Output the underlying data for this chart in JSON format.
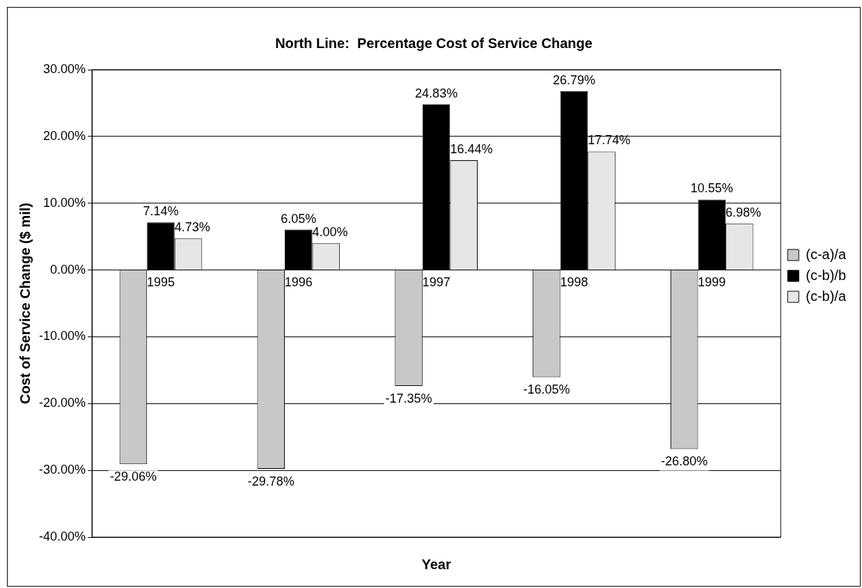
{
  "chart_data": {
    "type": "bar",
    "title": "North Line:  Percentage Cost of Service Change",
    "xlabel": "Year",
    "ylabel": "Cost of Service Change ($ mil)",
    "categories": [
      "1995",
      "1996",
      "1997",
      "1998",
      "1999"
    ],
    "series": [
      {
        "name": "(c-a)/a",
        "color": "#c8c8c8",
        "values": [
          -29.06,
          -29.78,
          -17.35,
          -16.05,
          -26.8
        ],
        "value_labels": [
          "-29.06%",
          "-29.78%",
          "-17.35%",
          "-16.05%",
          "-26.80%"
        ]
      },
      {
        "name": "(c-b)/b",
        "color": "#000000",
        "values": [
          7.14,
          6.05,
          24.83,
          26.79,
          10.55
        ],
        "value_labels": [
          "7.14%",
          "6.05%",
          "24.83%",
          "26.79%",
          "10.55%"
        ]
      },
      {
        "name": "(c-b)/a",
        "color": "#e6e6e6",
        "values": [
          4.73,
          4.0,
          16.44,
          17.74,
          6.98
        ],
        "value_labels": [
          "4.73%",
          "4.00%",
          "16.44%",
          "17.74%",
          "6.98%"
        ]
      }
    ],
    "ylim": [
      -40,
      30
    ],
    "yticks": [
      {
        "value": -40,
        "label": "-40.00%"
      },
      {
        "value": -30,
        "label": "-30.00%"
      },
      {
        "value": -20,
        "label": "-20.00%"
      },
      {
        "value": -10,
        "label": "-10.00%"
      },
      {
        "value": 0,
        "label": "0.00%"
      },
      {
        "value": 10,
        "label": "10.00%"
      },
      {
        "value": 20,
        "label": "20.00%"
      },
      {
        "value": 30,
        "label": "30.00%"
      }
    ],
    "grid": "y",
    "legend": "right"
  }
}
